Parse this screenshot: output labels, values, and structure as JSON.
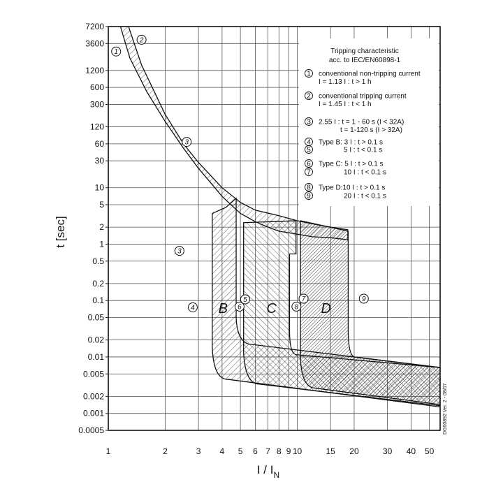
{
  "chart_data": {
    "type": "line",
    "title": "Tripping characteristic",
    "subtitle": "acc. to IEC/EN60898-1",
    "xlabel_main": "I / I",
    "xlabel_sub": "N",
    "ylabel": "t [sec]",
    "x_scale": "log",
    "y_scale": "log",
    "xlim": [
      1,
      57
    ],
    "ylim": [
      0.0005,
      7200
    ],
    "x_ticks": [
      1,
      2,
      3,
      4,
      5,
      6,
      7,
      8,
      9,
      10,
      15,
      20,
      30,
      40,
      50
    ],
    "y_ticks": [
      0.0005,
      0.001,
      0.002,
      0.005,
      0.01,
      0.02,
      0.05,
      0.1,
      0.2,
      0.5,
      1,
      2,
      5,
      10,
      30,
      60,
      120,
      300,
      600,
      1200,
      3600,
      7200
    ],
    "y_tick_labels": [
      "0.0005",
      "0.001",
      "0.002",
      "0.005",
      "0.01",
      "0.02",
      "0.05",
      "0.1",
      "0.2",
      "0.5",
      "1",
      "2",
      "5",
      "10",
      "30",
      "60",
      "120",
      "300",
      "600",
      "1200",
      "3600",
      "7200"
    ],
    "grid": true,
    "thermal_band": {
      "lower": {
        "x": [
          1.16,
          1.3,
          1.6,
          2.0,
          2.5,
          3.0,
          3.5,
          4.0,
          5.0,
          6.0,
          7.0,
          8.0,
          10.0,
          12.0,
          15.0,
          18.5
        ],
        "y": [
          7200,
          2000,
          500,
          150,
          50,
          22,
          12,
          7,
          3.5,
          2.5,
          2.0,
          1.7,
          1.5,
          1.35,
          1.3,
          1.2
        ]
      },
      "upper": {
        "x": [
          1.28,
          1.5,
          2.0,
          2.5,
          3.0,
          4.0,
          5.0,
          6.0,
          8.0,
          10.0,
          12.0,
          15.0,
          18.5
        ],
        "y": [
          7200,
          1500,
          200,
          60,
          28,
          10,
          5.5,
          4.0,
          3.2,
          2.6,
          2.3,
          2.0,
          1.8
        ]
      }
    },
    "magnetic_bands": [
      {
        "name": "B",
        "x_min": 3,
        "x_max": 5
      },
      {
        "name": "C",
        "x_min": 5,
        "x_max": 10
      },
      {
        "name": "D",
        "x_min": 10,
        "x_max": 20
      }
    ],
    "markers": [
      {
        "id": "1",
        "x": 1.13,
        "y": 3600
      },
      {
        "id": "2",
        "x": 1.45,
        "y": 3600
      },
      {
        "id": "3",
        "x": 2.55,
        "y": 60
      },
      {
        "id": "3",
        "x": 2.55,
        "y": 1
      },
      {
        "id": "4",
        "x": 3,
        "y": 0.1
      },
      {
        "id": "5",
        "x": 5,
        "y": 0.1
      },
      {
        "id": "6",
        "x": 5,
        "y": 0.1
      },
      {
        "id": "7",
        "x": 10,
        "y": 0.1
      },
      {
        "id": "8",
        "x": 10,
        "y": 0.1
      },
      {
        "id": "9",
        "x": 20,
        "y": 0.1
      }
    ],
    "legend": {
      "title": "Tripping characteristic",
      "subtitle": "acc. to IEC/EN60898-1",
      "items": [
        {
          "num": "1",
          "line1": "conventional non-tripping current",
          "line2": "I = 1.13 I : t > 1 h"
        },
        {
          "num": "2",
          "line1": "conventional tripping current",
          "line2": "I = 1.45 I : t < 1 h"
        },
        {
          "num": "3",
          "line1": "2.55 I : t = 1 - 60 s (I < 32A)",
          "line2": "t = 1-120 s (I > 32A)"
        },
        {
          "num": "4",
          "line1": "Type B: 3 I : t > 0.1 s",
          "line2": ""
        },
        {
          "num": "5",
          "line1": "5 I : t < 0.1 s",
          "line2": ""
        },
        {
          "num": "6",
          "line1": "Type C: 5 I : t > 0.1 s",
          "line2": ""
        },
        {
          "num": "7",
          "line1": "10 I : t < 0.1 s",
          "line2": ""
        },
        {
          "num": "8",
          "line1": "Type D:10 I : t > 0.1 s",
          "line2": ""
        },
        {
          "num": "9",
          "line1": "20 I : t < 0.1 s",
          "line2": ""
        }
      ]
    },
    "side_note": "DG00892 Ver. 2 - 08/07"
  },
  "colors": {
    "line": "#1a1a1a",
    "hatch": "#333333",
    "grid": "#444444",
    "background": "#ffffff"
  }
}
